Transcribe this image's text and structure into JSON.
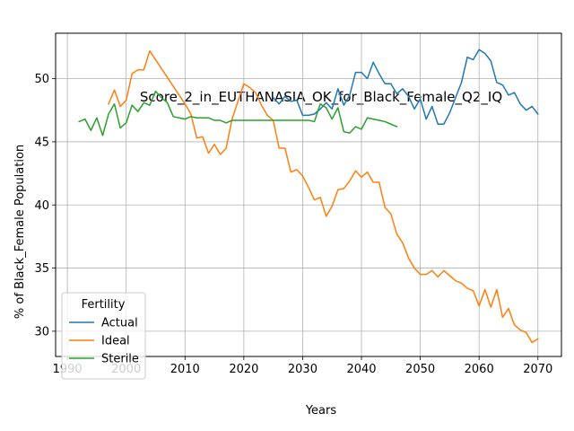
{
  "chart_data": {
    "type": "line",
    "title": "Score_2_in_EUTHANASIA_OK_for_Black_Female_Q2_IQ",
    "xlabel": "Years",
    "ylabel": "% of Black_Female Population",
    "xlim": [
      1988,
      2074
    ],
    "ylim": [
      28,
      53.6
    ],
    "xticks": [
      1990,
      2000,
      2010,
      2020,
      2030,
      2040,
      2050,
      2060,
      2070
    ],
    "yticks": [
      30,
      35,
      40,
      45,
      50
    ],
    "grid": true,
    "legend": {
      "title": "Fertility",
      "position": "lower-left"
    },
    "series": [
      {
        "name": "Actual",
        "color": "#1f77b4",
        "x": [
          2025,
          2026,
          2027,
          2028,
          2029,
          2030,
          2031,
          2032,
          2033,
          2034,
          2035,
          2036,
          2037,
          2038,
          2039,
          2040,
          2041,
          2042,
          2043,
          2044,
          2045,
          2046,
          2047,
          2048,
          2049,
          2050,
          2051,
          2052,
          2053,
          2054,
          2055,
          2056,
          2057,
          2058,
          2059,
          2060,
          2061,
          2062,
          2063,
          2064,
          2065,
          2066,
          2067,
          2068,
          2069,
          2070
        ],
        "y": [
          48.5,
          48.0,
          48.6,
          48.2,
          48.3,
          47.1,
          47.1,
          47.2,
          47.6,
          48.1,
          47.6,
          49.2,
          47.9,
          48.7,
          50.5,
          50.5,
          50.0,
          51.3,
          50.4,
          49.6,
          49.6,
          48.8,
          49.2,
          48.6,
          47.6,
          48.4,
          46.8,
          47.8,
          46.4,
          46.4,
          47.3,
          48.5,
          49.7,
          51.7,
          51.5,
          52.3,
          52.0,
          51.4,
          49.7,
          49.5,
          48.7,
          48.9,
          48.0,
          47.5,
          47.8,
          47.2
        ]
      },
      {
        "name": "Ideal",
        "color": "#ff7f0e",
        "x": [
          1997,
          1998,
          1999,
          2000,
          2001,
          2002,
          2003,
          2004,
          2005,
          2006,
          2007,
          2008,
          2009,
          2010,
          2011,
          2012,
          2013,
          2014,
          2015,
          2016,
          2017,
          2018,
          2019,
          2020,
          2021,
          2022,
          2023,
          2024,
          2025,
          2026,
          2027,
          2028,
          2029,
          2030,
          2031,
          2032,
          2033,
          2034,
          2035,
          2036,
          2037,
          2038,
          2039,
          2040,
          2041,
          2042,
          2043,
          2044,
          2045,
          2046,
          2047,
          2048,
          2049,
          2050,
          2051,
          2052,
          2053,
          2054,
          2055,
          2056,
          2057,
          2058,
          2059,
          2060,
          2061,
          2062,
          2063,
          2064,
          2065,
          2066,
          2067,
          2068,
          2069,
          2070
        ],
        "y": [
          48.0,
          49.1,
          47.8,
          48.3,
          50.4,
          50.7,
          50.7,
          52.2,
          51.5,
          50.8,
          50.1,
          49.4,
          48.7,
          48.0,
          47.2,
          45.3,
          45.4,
          44.1,
          44.8,
          44.0,
          44.5,
          46.8,
          48.2,
          49.6,
          49.3,
          48.9,
          47.9,
          47.1,
          46.7,
          44.5,
          44.5,
          42.6,
          42.8,
          42.3,
          41.4,
          40.4,
          40.6,
          39.1,
          39.9,
          41.2,
          41.3,
          41.9,
          42.7,
          42.2,
          42.6,
          41.8,
          41.8,
          39.8,
          39.3,
          37.7,
          37.0,
          35.8,
          35.0,
          34.5,
          34.5,
          34.8,
          34.3,
          34.8,
          34.4,
          34.0,
          33.8,
          33.4,
          33.2,
          32.0,
          33.3,
          31.9,
          33.3,
          31.1,
          31.8,
          30.5,
          30.1,
          29.9,
          29.1,
          29.4
        ]
      },
      {
        "name": "Sterile",
        "color": "#2ca02c",
        "x": [
          1992,
          1993,
          1994,
          1995,
          1996,
          1997,
          1998,
          1999,
          2000,
          2001,
          2002,
          2003,
          2004,
          2005,
          2006,
          2007,
          2008,
          2009,
          2010,
          2011,
          2012,
          2013,
          2014,
          2015,
          2016,
          2017,
          2018,
          2019,
          2020,
          2021,
          2022,
          2023,
          2024,
          2025,
          2026,
          2027,
          2028,
          2029,
          2030,
          2031,
          2032,
          2033,
          2034,
          2035,
          2036,
          2037,
          2038,
          2039,
          2040,
          2041,
          2042,
          2043,
          2044,
          2045,
          2046
        ],
        "y": [
          46.6,
          46.8,
          45.9,
          46.9,
          45.5,
          47.2,
          48.0,
          46.1,
          46.5,
          47.9,
          47.4,
          48.1,
          47.9,
          49.0,
          48.5,
          48.1,
          47.0,
          46.9,
          46.8,
          47.0,
          46.9,
          46.9,
          46.9,
          46.7,
          46.7,
          46.5,
          46.7,
          46.7,
          46.7,
          46.7,
          46.7,
          46.7,
          46.7,
          46.7,
          46.7,
          46.7,
          46.7,
          46.7,
          46.7,
          46.7,
          46.6,
          48.0,
          47.7,
          46.8,
          47.7,
          45.8,
          45.7,
          46.2,
          46.0,
          46.9,
          46.8,
          46.7,
          46.6,
          46.4,
          46.2
        ]
      }
    ]
  }
}
